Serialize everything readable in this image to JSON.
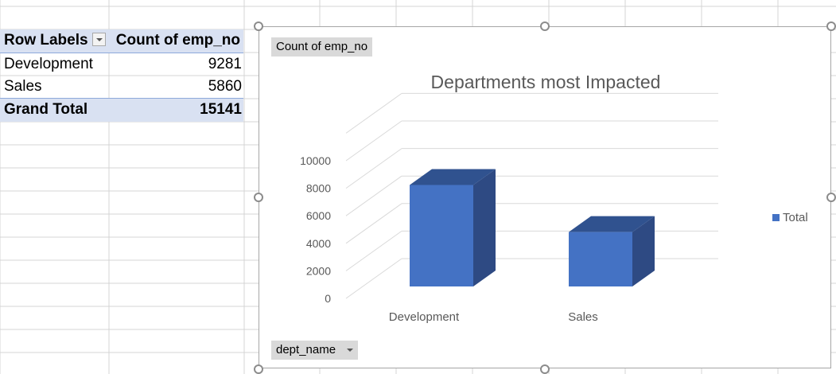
{
  "pivot": {
    "header": {
      "row_labels": "Row Labels",
      "value_label": "Count of emp_no"
    },
    "rows": [
      {
        "label": "Development",
        "value": "9281"
      },
      {
        "label": "Sales",
        "value": "5860"
      }
    ],
    "total": {
      "label": "Grand Total",
      "value": "15141"
    }
  },
  "chart_buttons": {
    "values_field": "Count of emp_no",
    "axis_field": "dept_name"
  },
  "chart_data": {
    "type": "bar",
    "title": "Departments most Impacted",
    "categories": [
      "Development",
      "Sales"
    ],
    "series": [
      {
        "name": "Total",
        "values": [
          9281,
          5860
        ],
        "color": "#4472c4"
      }
    ],
    "yticks": [
      0,
      2000,
      4000,
      6000,
      8000,
      10000
    ],
    "ylim": [
      0,
      10000
    ],
    "grid": true,
    "legend": "right",
    "style": "3d-column"
  },
  "colors": {
    "accent": "#4472c4",
    "header_fill": "#d9e1f2",
    "button_fill": "#d9d9d9"
  }
}
